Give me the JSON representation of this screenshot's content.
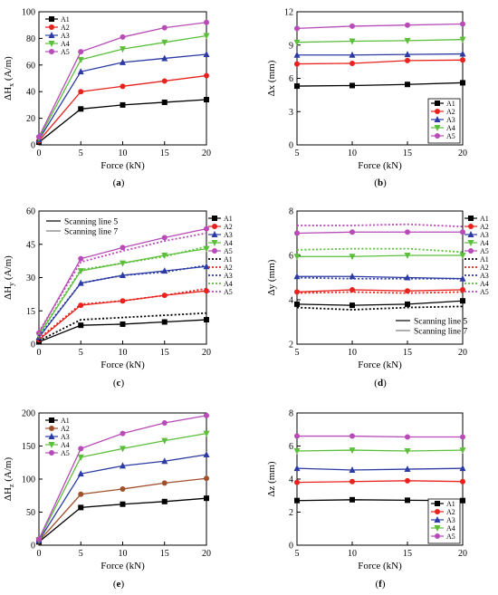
{
  "figure": {
    "x_tick_labels_0": [
      "0",
      "5",
      "10",
      "15",
      "20"
    ],
    "x_tick_labels_5": [
      "5",
      "10",
      "15",
      "20"
    ]
  },
  "colors": {
    "A1": "#000000",
    "A2": "#e8221c",
    "A3": "#2c3ba3",
    "A4": "#5bbf3a",
    "A5": "#b84bb8",
    "A2_e": "#a0512b"
  },
  "chart_data": [
    {
      "id": "a",
      "type": "line",
      "caption": "(a)",
      "xlabel": "Force (kN)",
      "ylabel": "ΔH_x (A/m)",
      "x": [
        0,
        5,
        10,
        15,
        20
      ],
      "xlim": [
        0,
        20
      ],
      "ylim": [
        0,
        100
      ],
      "yticks": [
        "0",
        "20",
        "40",
        "60",
        "80",
        "100"
      ],
      "legend": "top-left",
      "series": [
        {
          "name": "A1",
          "values": [
            2,
            27,
            30,
            32,
            34
          ]
        },
        {
          "name": "A2",
          "values": [
            3,
            40,
            44,
            48,
            52
          ]
        },
        {
          "name": "A3",
          "values": [
            4,
            55,
            62,
            65,
            68
          ]
        },
        {
          "name": "A4",
          "values": [
            5,
            64,
            72,
            77,
            82
          ]
        },
        {
          "name": "A5",
          "values": [
            6,
            70,
            81,
            88,
            92
          ]
        }
      ]
    },
    {
      "id": "b",
      "type": "line",
      "caption": "(b)",
      "xlabel": "Force (kN)",
      "ylabel": "Δx (mm)",
      "x": [
        5,
        10,
        15,
        20
      ],
      "xlim": [
        5,
        20
      ],
      "ylim": [
        0,
        12
      ],
      "yticks": [
        "0",
        "3",
        "6",
        "9",
        "12"
      ],
      "legend": "bottom-right",
      "series": [
        {
          "name": "A1",
          "values": [
            5.3,
            5.35,
            5.45,
            5.6
          ]
        },
        {
          "name": "A2",
          "values": [
            7.3,
            7.35,
            7.6,
            7.65
          ]
        },
        {
          "name": "A3",
          "values": [
            8.1,
            8.1,
            8.15,
            8.2
          ]
        },
        {
          "name": "A4",
          "values": [
            9.25,
            9.35,
            9.4,
            9.5
          ]
        },
        {
          "name": "A5",
          "values": [
            10.5,
            10.7,
            10.8,
            10.9
          ]
        }
      ]
    },
    {
      "id": "c",
      "type": "line",
      "caption": "(c)",
      "xlabel": "Force (kN)",
      "ylabel": "ΔH_y (A/m)",
      "x": [
        0,
        5,
        10,
        15,
        20
      ],
      "xlim": [
        0,
        20
      ],
      "ylim": [
        0,
        60
      ],
      "yticks": [
        "0",
        "15",
        "30",
        "45",
        "60"
      ],
      "legend": "right",
      "line_key": [
        {
          "label": "Scanning line 5",
          "style": "dotted"
        },
        {
          "label": "Scanning line 7",
          "style": "solid"
        }
      ],
      "series": [
        {
          "name": "A1",
          "line": "Scanning line 7",
          "values": [
            1,
            8.5,
            9,
            10,
            11
          ]
        },
        {
          "name": "A2",
          "line": "Scanning line 7",
          "values": [
            2,
            17.5,
            19.5,
            22,
            24
          ]
        },
        {
          "name": "A3",
          "line": "Scanning line 7",
          "values": [
            3,
            27.5,
            31,
            33,
            35
          ]
        },
        {
          "name": "A4",
          "line": "Scanning line 7",
          "values": [
            4,
            33,
            36.5,
            40,
            43
          ]
        },
        {
          "name": "A5",
          "line": "Scanning line 7",
          "values": [
            5,
            38.5,
            43.5,
            48,
            52
          ]
        },
        {
          "name": "A1",
          "line": "Scanning line 5",
          "values": [
            1.5,
            11,
            12,
            13,
            14
          ]
        },
        {
          "name": "A2",
          "line": "Scanning line 5",
          "values": [
            2.5,
            18,
            19.5,
            22,
            25
          ]
        },
        {
          "name": "A3",
          "line": "Scanning line 5",
          "values": [
            3.5,
            27.5,
            31,
            32.5,
            35.5
          ]
        },
        {
          "name": "A4",
          "line": "Scanning line 5",
          "values": [
            4.5,
            33.5,
            36.5,
            39.5,
            44
          ]
        },
        {
          "name": "A5",
          "line": "Scanning line 5",
          "values": [
            5.5,
            37,
            42,
            46.5,
            50
          ]
        }
      ]
    },
    {
      "id": "d",
      "type": "line",
      "caption": "(d)",
      "xlabel": "Force (kN)",
      "ylabel": "Δy (mm)",
      "x": [
        5,
        10,
        15,
        20
      ],
      "xlim": [
        5,
        20
      ],
      "ylim": [
        2,
        8
      ],
      "yticks": [
        "2",
        "4",
        "6",
        "8"
      ],
      "legend": "right",
      "line_key": [
        {
          "label": "Scanning line 5",
          "style": "dotted"
        },
        {
          "label": "Scanning line 7",
          "style": "solid"
        }
      ],
      "series": [
        {
          "name": "A1",
          "line": "Scanning line 7",
          "values": [
            3.8,
            3.75,
            3.8,
            3.95
          ]
        },
        {
          "name": "A2",
          "line": "Scanning line 7",
          "values": [
            4.35,
            4.45,
            4.4,
            4.45
          ]
        },
        {
          "name": "A3",
          "line": "Scanning line 7",
          "values": [
            5.05,
            5.05,
            5.0,
            4.95
          ]
        },
        {
          "name": "A4",
          "line": "Scanning line 7",
          "values": [
            5.95,
            5.95,
            6.0,
            6.0
          ]
        },
        {
          "name": "A5",
          "line": "Scanning line 7",
          "values": [
            7.0,
            7.05,
            7.05,
            7.05
          ]
        },
        {
          "name": "A1",
          "line": "Scanning line 5",
          "values": [
            3.65,
            3.55,
            3.65,
            3.7
          ]
        },
        {
          "name": "A2",
          "line": "Scanning line 5",
          "values": [
            4.3,
            4.35,
            4.3,
            4.35
          ]
        },
        {
          "name": "A3",
          "line": "Scanning line 5",
          "values": [
            5.0,
            4.95,
            4.95,
            4.95
          ]
        },
        {
          "name": "A4",
          "line": "Scanning line 5",
          "values": [
            6.25,
            6.3,
            6.3,
            6.15
          ]
        },
        {
          "name": "A5",
          "line": "Scanning line 5",
          "values": [
            7.35,
            7.35,
            7.4,
            7.3
          ]
        }
      ]
    },
    {
      "id": "e",
      "type": "line",
      "caption": "(e)",
      "xlabel": "Force (kN)",
      "ylabel": "ΔH_z (A/m)",
      "x": [
        0,
        5,
        10,
        15,
        20
      ],
      "xlim": [
        0,
        20
      ],
      "ylim": [
        0,
        200
      ],
      "yticks": [
        "0",
        "50",
        "100",
        "150",
        "200"
      ],
      "legend": "top-left",
      "series": [
        {
          "name": "A1",
          "values": [
            5,
            57,
            62,
            66,
            71
          ]
        },
        {
          "name": "A2",
          "values": [
            6,
            77,
            85,
            94,
            101
          ]
        },
        {
          "name": "A3",
          "values": [
            7,
            108,
            120,
            127,
            137
          ]
        },
        {
          "name": "A4",
          "values": [
            8,
            133,
            146,
            158,
            169
          ]
        },
        {
          "name": "A5",
          "values": [
            9,
            146,
            169,
            185,
            196
          ]
        }
      ]
    },
    {
      "id": "f",
      "type": "line",
      "caption": "(f)",
      "xlabel": "Force (kN)",
      "ylabel": "Δz (mm)",
      "x": [
        5,
        10,
        15,
        20
      ],
      "xlim": [
        5,
        20
      ],
      "ylim": [
        0,
        8
      ],
      "yticks": [
        "0",
        "2",
        "4",
        "6",
        "8"
      ],
      "legend": "bottom-right",
      "series": [
        {
          "name": "A1",
          "values": [
            2.7,
            2.75,
            2.72,
            2.7
          ]
        },
        {
          "name": "A2",
          "values": [
            3.8,
            3.85,
            3.9,
            3.85
          ]
        },
        {
          "name": "A3",
          "values": [
            4.65,
            4.55,
            4.6,
            4.65
          ]
        },
        {
          "name": "A4",
          "values": [
            5.7,
            5.75,
            5.7,
            5.75
          ]
        },
        {
          "name": "A5",
          "values": [
            6.6,
            6.6,
            6.55,
            6.55
          ]
        }
      ]
    }
  ]
}
